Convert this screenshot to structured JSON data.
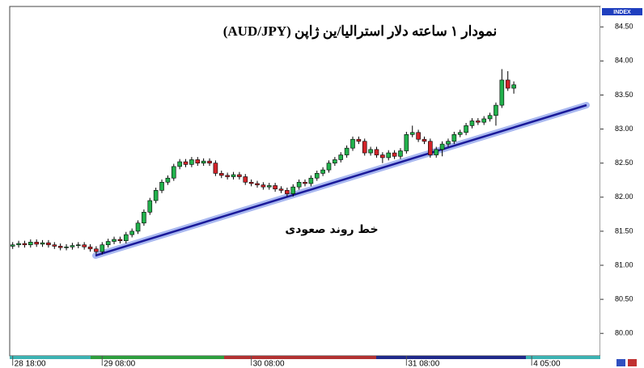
{
  "chart_data": {
    "type": "candlestick",
    "title": "نمودار ۱ ساعته دلار استرالیا/ین ژاپن (AUD/JPY)",
    "annotation": "خط روند صعودی",
    "axis_badge": "INDEX",
    "up_color": "#22b14c",
    "down_color": "#d2242a",
    "ylim": [
      79.67,
      84.8
    ],
    "yticks": [
      {
        "value": 80,
        "label": "80.00"
      },
      {
        "value": 80.5,
        "label": "80.50"
      },
      {
        "value": 81,
        "label": "81.00"
      },
      {
        "value": 81.5,
        "label": "81.50"
      },
      {
        "value": 82,
        "label": "82.00"
      },
      {
        "value": 82.5,
        "label": "82.50"
      },
      {
        "value": 83,
        "label": "83.00"
      },
      {
        "value": 83.5,
        "label": "83.50"
      },
      {
        "value": 84,
        "label": "84.00"
      },
      {
        "value": 84.5,
        "label": "84.50"
      }
    ],
    "categories": [
      "28 18:00",
      null,
      null,
      null,
      null,
      null,
      null,
      null,
      null,
      null,
      null,
      null,
      null,
      null,
      null,
      "29 08:00",
      null,
      null,
      null,
      null,
      null,
      null,
      null,
      null,
      null,
      null,
      null,
      null,
      null,
      null,
      null,
      null,
      null,
      null,
      null,
      null,
      null,
      null,
      null,
      null,
      "30 08:00",
      null,
      null,
      null,
      null,
      null,
      null,
      null,
      null,
      null,
      null,
      null,
      null,
      null,
      null,
      null,
      null,
      null,
      null,
      null,
      null,
      null,
      null,
      null,
      null,
      null,
      "31 08:00",
      null,
      null,
      null,
      null,
      null,
      null,
      null,
      null,
      null,
      null,
      null,
      null,
      null,
      null,
      null,
      null,
      null,
      null,
      null,
      null,
      "4 05:00",
      null,
      null,
      null,
      null,
      null,
      null,
      null,
      null,
      null,
      null,
      null
    ],
    "open": [
      81.28,
      81.3,
      81.32,
      81.3,
      81.34,
      81.31,
      81.33,
      81.3,
      81.28,
      81.26,
      81.27,
      81.29,
      81.3,
      81.27,
      81.24,
      81.2,
      81.3,
      81.35,
      81.38,
      81.36,
      81.45,
      81.5,
      81.62,
      81.78,
      81.95,
      82.1,
      82.22,
      82.28,
      82.45,
      82.52,
      82.48,
      82.55,
      82.5,
      82.53,
      82.5,
      82.35,
      82.32,
      82.3,
      82.33,
      82.3,
      82.22,
      82.2,
      82.18,
      82.15,
      82.17,
      82.12,
      82.1,
      82.05,
      82.15,
      82.22,
      82.2,
      82.28,
      82.35,
      82.4,
      82.5,
      82.55,
      82.62,
      82.72,
      82.85,
      82.82,
      82.65,
      82.7,
      82.62,
      82.58,
      82.65,
      82.6,
      82.68,
      82.92,
      82.95,
      82.85,
      82.82,
      82.62,
      82.7,
      82.78,
      82.82,
      82.92,
      82.95,
      83.05,
      83.12,
      83.1,
      83.15,
      83.2,
      83.35,
      83.72,
      83.6,
      null,
      null,
      null,
      null,
      null,
      null,
      null,
      null,
      null,
      null,
      null,
      null,
      null,
      null
    ],
    "high": [
      81.34,
      81.36,
      81.36,
      81.38,
      81.38,
      81.37,
      81.37,
      81.34,
      81.32,
      81.31,
      81.33,
      81.34,
      81.34,
      81.31,
      81.28,
      81.34,
      81.39,
      81.42,
      81.42,
      81.49,
      81.54,
      81.66,
      81.82,
      81.99,
      82.14,
      82.26,
      82.32,
      82.49,
      82.56,
      82.56,
      82.59,
      82.59,
      82.57,
      82.57,
      82.54,
      82.39,
      82.36,
      82.37,
      82.37,
      82.34,
      82.26,
      82.24,
      82.22,
      82.21,
      82.21,
      82.16,
      82.14,
      82.19,
      82.26,
      82.26,
      82.32,
      82.39,
      82.44,
      82.54,
      82.59,
      82.66,
      82.76,
      82.89,
      82.89,
      82.86,
      82.74,
      82.74,
      82.66,
      82.69,
      82.69,
      82.72,
      82.96,
      83.05,
      82.99,
      82.89,
      82.86,
      82.74,
      82.82,
      82.86,
      82.96,
      82.99,
      83.09,
      83.16,
      83.16,
      83.19,
      83.24,
      83.39,
      83.88,
      83.85,
      83.7,
      null,
      null,
      null,
      null,
      null,
      null,
      null,
      null,
      null,
      null,
      null,
      null,
      null,
      null
    ],
    "low": [
      81.24,
      81.26,
      81.26,
      81.26,
      81.27,
      81.27,
      81.26,
      81.24,
      81.22,
      81.22,
      81.23,
      81.25,
      81.23,
      81.2,
      81.16,
      81.16,
      81.26,
      81.31,
      81.32,
      81.32,
      81.41,
      81.46,
      81.58,
      81.74,
      81.91,
      82.06,
      82.18,
      82.24,
      82.41,
      82.44,
      82.44,
      82.46,
      82.46,
      82.46,
      82.31,
      82.28,
      82.26,
      82.26,
      82.26,
      82.18,
      82.16,
      82.14,
      82.11,
      82.11,
      82.08,
      82.06,
      82.01,
      82.01,
      82.11,
      82.16,
      82.16,
      82.24,
      82.31,
      82.36,
      82.46,
      82.51,
      82.58,
      82.68,
      82.78,
      82.61,
      82.61,
      82.58,
      82.5,
      82.54,
      82.56,
      82.56,
      82.64,
      82.88,
      82.81,
      82.78,
      82.58,
      82.58,
      82.6,
      82.74,
      82.78,
      82.88,
      82.91,
      83.01,
      83.06,
      83.06,
      83.11,
      83.05,
      83.31,
      83.56,
      83.52,
      null,
      null,
      null,
      null,
      null,
      null,
      null,
      null,
      null,
      null,
      null,
      null,
      null,
      null
    ],
    "close": [
      81.3,
      81.32,
      81.3,
      81.34,
      81.31,
      81.33,
      81.3,
      81.28,
      81.26,
      81.27,
      81.29,
      81.3,
      81.27,
      81.24,
      81.2,
      81.3,
      81.35,
      81.38,
      81.36,
      81.45,
      81.5,
      81.62,
      81.78,
      81.95,
      82.1,
      82.22,
      82.28,
      82.45,
      82.52,
      82.48,
      82.55,
      82.5,
      82.53,
      82.5,
      82.35,
      82.32,
      82.3,
      82.33,
      82.3,
      82.22,
      82.2,
      82.18,
      82.15,
      82.17,
      82.12,
      82.1,
      82.05,
      82.15,
      82.22,
      82.2,
      82.28,
      82.35,
      82.4,
      82.5,
      82.55,
      82.62,
      82.72,
      82.85,
      82.82,
      82.65,
      82.7,
      82.62,
      82.58,
      82.65,
      82.6,
      82.68,
      82.92,
      82.95,
      82.85,
      82.82,
      82.62,
      82.7,
      82.78,
      82.82,
      82.92,
      82.95,
      83.05,
      83.12,
      83.1,
      83.15,
      83.2,
      83.35,
      83.72,
      83.6,
      83.65,
      null,
      null,
      null,
      null,
      null,
      null,
      null,
      null,
      null,
      null,
      null,
      null,
      null,
      null
    ]
  }
}
